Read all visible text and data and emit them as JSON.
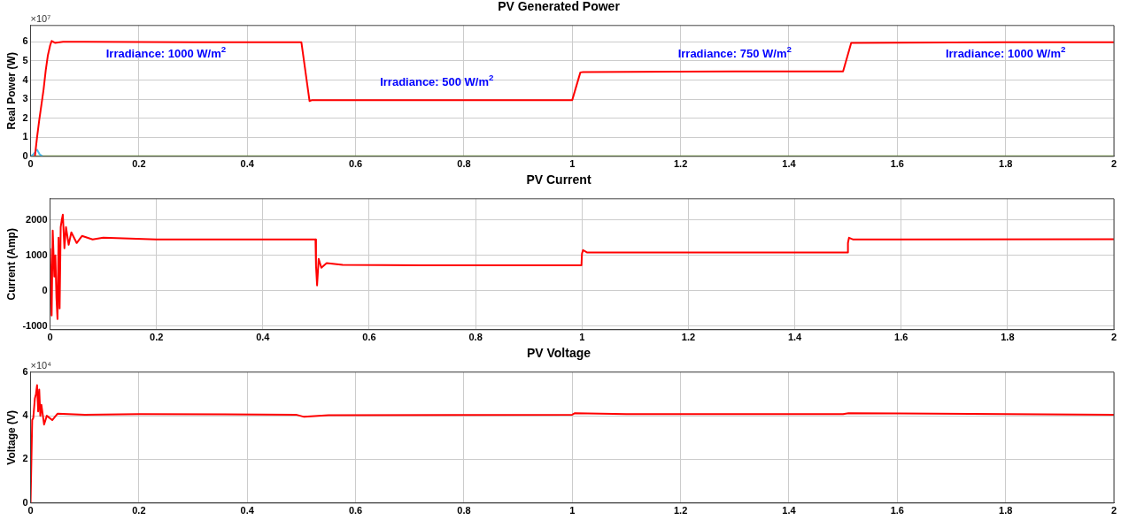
{
  "chart_data": [
    {
      "type": "line",
      "title": "PV Generated Power",
      "ylabel": "Real Power (W)",
      "xlim": [
        0,
        2
      ],
      "xticks": [
        0,
        0.2,
        0.4,
        0.6,
        0.8,
        1,
        1.2,
        1.4,
        1.6,
        1.8,
        2
      ],
      "ylim": [
        0,
        6.86
      ],
      "yticks": [
        0,
        1,
        2,
        3,
        4,
        5,
        6
      ],
      "grid": true,
      "legend": false,
      "marker": "none",
      "line_style": "solid",
      "annotations": [
        "×10⁷",
        "Irradiance: 1000 W/m$^{2}$",
        "Irradiance: 500 W/m$^{2}$",
        "Irradiance: 750 W/m$^{2}$",
        "Irradiance: 1000 W/m$^{2}$"
      ],
      "series": [
        {
          "color": "#ff0000",
          "x": [
            0.008,
            0.012,
            0.016,
            0.02,
            0.024,
            0.028,
            0.032,
            0.036,
            0.039,
            0.045,
            0.06,
            0.1,
            0.3,
            0.5,
            0.515,
            0.52,
            0.7,
            1.0,
            1.015,
            1.02,
            1.3,
            1.5,
            1.515,
            1.52,
            1.8,
            2
          ],
          "values": [
            0,
            1,
            1.9,
            2.7,
            3.5,
            4.5,
            5.3,
            5.8,
            6.05,
            5.95,
            6,
            6,
            5.98,
            5.98,
            2.9,
            2.95,
            2.95,
            2.95,
            4.4,
            4.42,
            4.45,
            4.45,
            5.95,
            5.95,
            5.98,
            5.98
          ]
        },
        {
          "color": "#4dbeee",
          "x": [
            0,
            0.005,
            0.012,
            0.017,
            0.022
          ],
          "values": [
            0,
            0.1,
            0.35,
            0.1,
            0
          ]
        },
        {
          "color": "#77ac30",
          "x": [
            0,
            2
          ],
          "values": [
            0,
            0
          ]
        }
      ]
    },
    {
      "type": "line",
      "title": "PV Current",
      "ylabel": "Current (Amp)",
      "xlim": [
        0,
        2
      ],
      "xticks": [
        0,
        0.2,
        0.4,
        0.6,
        0.8,
        1,
        1.2,
        1.4,
        1.6,
        1.8,
        2
      ],
      "ylim": [
        -1100,
        2600
      ],
      "yticks": [
        -1000,
        0,
        1000,
        2000
      ],
      "grid": true,
      "legend": false,
      "marker": "none",
      "line_style": "solid",
      "series": [
        {
          "color": "#ff0000",
          "x": [
            0,
            0.003,
            0.005,
            0.008,
            0.01,
            0.012,
            0.014,
            0.016,
            0.018,
            0.02,
            0.022,
            0.024,
            0.027,
            0.03,
            0.035,
            0.04,
            0.05,
            0.06,
            0.08,
            0.1,
            0.2,
            0.3,
            0.4,
            0.499,
            0.5,
            0.502,
            0.505,
            0.51,
            0.52,
            0.55,
            0.7,
            0.999,
            1.0,
            1.002,
            1.01,
            1.3,
            1.499,
            1.5,
            1.502,
            1.51,
            2
          ],
          "values": [
            1200,
            -700,
            1700,
            400,
            1000,
            -200,
            -800,
            1500,
            -500,
            1800,
            2000,
            2150,
            1200,
            1800,
            1300,
            1650,
            1350,
            1550,
            1450,
            1500,
            1450,
            1450,
            1450,
            1450,
            700,
            150,
            900,
            650,
            780,
            730,
            720,
            720,
            1050,
            1150,
            1080,
            1080,
            1080,
            1350,
            1500,
            1450,
            1460
          ]
        }
      ]
    },
    {
      "type": "line",
      "title": "PV Voltage",
      "ylabel": "Voltage (V)",
      "xlim": [
        0,
        2
      ],
      "xticks": [
        0,
        0.2,
        0.4,
        0.6,
        0.8,
        1,
        1.2,
        1.4,
        1.6,
        1.8,
        2
      ],
      "ylim": [
        0,
        6
      ],
      "yticks": [
        0,
        2,
        4,
        6
      ],
      "grid": true,
      "legend": false,
      "marker": "none",
      "line_style": "solid",
      "annotations": [
        "×10⁴"
      ],
      "series": [
        {
          "color": "#ff0000",
          "x": [
            0,
            0.003,
            0.005,
            0.008,
            0.01,
            0.012,
            0.014,
            0.016,
            0.018,
            0.02,
            0.025,
            0.03,
            0.04,
            0.05,
            0.1,
            0.2,
            0.49,
            0.505,
            0.55,
            1.0,
            1.005,
            1.1,
            1.5,
            1.51,
            2
          ],
          "values": [
            0,
            3.8,
            3.9,
            4.8,
            5,
            5.4,
            4.2,
            5.2,
            4,
            4.5,
            3.6,
            4,
            3.8,
            4.1,
            4.05,
            4.08,
            4.05,
            3.95,
            4.03,
            4.05,
            4.12,
            4.08,
            4.08,
            4.12,
            4.05
          ]
        }
      ]
    }
  ]
}
